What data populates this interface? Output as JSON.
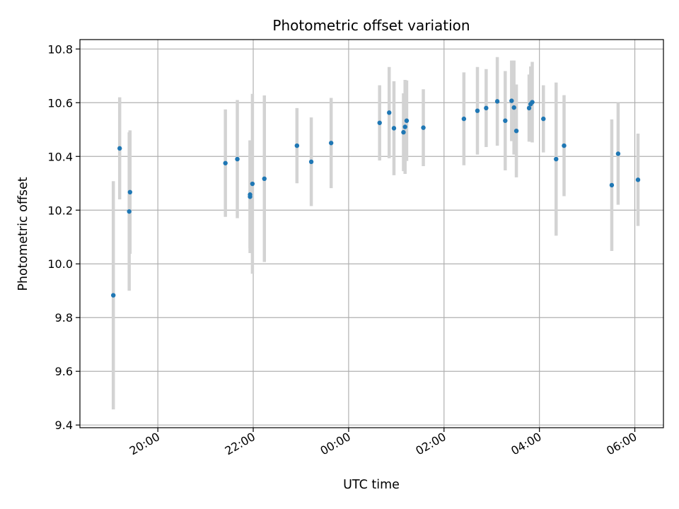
{
  "chart_data": {
    "type": "scatter",
    "title": "Photometric offset variation",
    "xlabel": "UTC time",
    "ylabel": "Photometric offset",
    "grid": true,
    "x_axis": "time",
    "xlim": [
      "18:22",
      "06:36"
    ],
    "ylim": [
      9.39,
      10.835
    ],
    "x_ticks": [
      "20:00",
      "22:00",
      "00:00",
      "02:00",
      "04:00",
      "06:00"
    ],
    "y_ticks": [
      "9.4",
      "9.6",
      "9.8",
      "10.0",
      "10.2",
      "10.4",
      "10.6",
      "10.8"
    ],
    "point_color": "#1f77b4",
    "errorbar_color": "#d3d3d3",
    "points": [
      {
        "x": "19:04",
        "y": 9.883,
        "err": 0.425
      },
      {
        "x": "19:12",
        "y": 10.43,
        "err": 0.19
      },
      {
        "x": "19:24",
        "y": 10.195,
        "err": 0.295
      },
      {
        "x": "19:25",
        "y": 10.267,
        "err": 0.23
      },
      {
        "x": "21:25",
        "y": 10.375,
        "err": 0.2
      },
      {
        "x": "21:40",
        "y": 10.39,
        "err": 0.22
      },
      {
        "x": "21:56",
        "y": 10.258,
        "err": 0.2
      },
      {
        "x": "21:56",
        "y": 10.25,
        "err": 0.21
      },
      {
        "x": "21:59",
        "y": 10.298,
        "err": 0.335
      },
      {
        "x": "22:14",
        "y": 10.317,
        "err": 0.31
      },
      {
        "x": "22:55",
        "y": 10.44,
        "err": 0.14
      },
      {
        "x": "23:13",
        "y": 10.38,
        "err": 0.165
      },
      {
        "x": "23:38",
        "y": 10.45,
        "err": 0.168
      },
      {
        "x": "00:39",
        "y": 10.525,
        "err": 0.14
      },
      {
        "x": "00:51",
        "y": 10.563,
        "err": 0.17
      },
      {
        "x": "00:57",
        "y": 10.505,
        "err": 0.175
      },
      {
        "x": "01:09",
        "y": 10.49,
        "err": 0.145
      },
      {
        "x": "01:11",
        "y": 10.51,
        "err": 0.175
      },
      {
        "x": "01:13",
        "y": 10.533,
        "err": 0.15
      },
      {
        "x": "01:34",
        "y": 10.507,
        "err": 0.143
      },
      {
        "x": "02:25",
        "y": 10.54,
        "err": 0.173
      },
      {
        "x": "02:42",
        "y": 10.57,
        "err": 0.163
      },
      {
        "x": "02:53",
        "y": 10.58,
        "err": 0.145
      },
      {
        "x": "03:07",
        "y": 10.605,
        "err": 0.165
      },
      {
        "x": "03:17",
        "y": 10.533,
        "err": 0.185
      },
      {
        "x": "03:25",
        "y": 10.607,
        "err": 0.15
      },
      {
        "x": "03:28",
        "y": 10.582,
        "err": 0.175
      },
      {
        "x": "03:31",
        "y": 10.495,
        "err": 0.173
      },
      {
        "x": "03:47",
        "y": 10.58,
        "err": 0.125
      },
      {
        "x": "03:49",
        "y": 10.595,
        "err": 0.14
      },
      {
        "x": "03:51",
        "y": 10.602,
        "err": 0.15
      },
      {
        "x": "04:05",
        "y": 10.54,
        "err": 0.125
      },
      {
        "x": "04:21",
        "y": 10.39,
        "err": 0.285
      },
      {
        "x": "04:31",
        "y": 10.44,
        "err": 0.188
      },
      {
        "x": "05:31",
        "y": 10.293,
        "err": 0.245
      },
      {
        "x": "05:39",
        "y": 10.41,
        "err": 0.19
      },
      {
        "x": "06:04",
        "y": 10.313,
        "err": 0.172
      }
    ]
  }
}
